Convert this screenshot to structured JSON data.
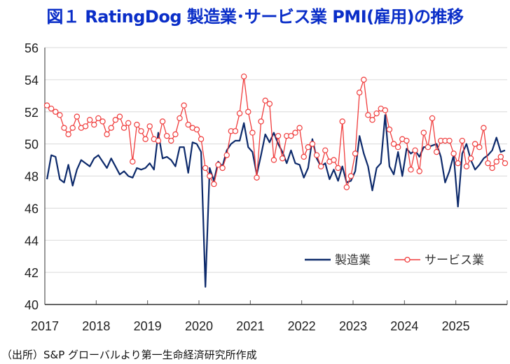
{
  "title": "図１ RatingDog 製造業･サービス業 PMI(雇用)の推移",
  "source": "（出所）S&P グローバルより第一生命経済研究所作成",
  "chart_data": {
    "type": "line",
    "title": "図１ RatingDog 製造業･サービス業 PMI(雇用)の推移",
    "xlabel": "",
    "ylabel": "",
    "ylim": [
      40,
      56
    ],
    "yticks": [
      40,
      42,
      44,
      46,
      48,
      50,
      52,
      54,
      56
    ],
    "xticks": [
      "2017",
      "2018",
      "2019",
      "2020",
      "2021",
      "2022",
      "2023",
      "2024",
      "2025"
    ],
    "x_start": "2017-01",
    "x_end": "2025-12",
    "grid": true,
    "legend_position": "bottom-right",
    "series": [
      {
        "name": "製造業",
        "color": "#0d2a6b",
        "marker": "none",
        "values": [
          47.8,
          49.3,
          49.2,
          47.8,
          47.6,
          48.7,
          47.4,
          48.4,
          49.0,
          48.8,
          48.6,
          49.1,
          49.3,
          48.9,
          48.5,
          49.1,
          48.6,
          48.1,
          48.3,
          48.0,
          47.9,
          48.5,
          48.4,
          48.5,
          48.8,
          48.4,
          50.7,
          49.1,
          49.2,
          49.0,
          48.6,
          49.8,
          49.8,
          48.2,
          50.1,
          50.0,
          49.5,
          41.1,
          48.5,
          47.7,
          48.9,
          48.6,
          49.6,
          50.0,
          50.2,
          50.2,
          51.3,
          49.8,
          49.5,
          48.1,
          49.3,
          50.6,
          50.1,
          50.7,
          50.0,
          49.5,
          48.8,
          49.6,
          48.8,
          48.7,
          47.9,
          48.5,
          50.3,
          49.1,
          48.6,
          48.8,
          47.8,
          48.4,
          47.7,
          48.6,
          47.6,
          47.7,
          48.3,
          50.5,
          49.4,
          48.6,
          47.1,
          48.5,
          48.8,
          51.8,
          48.6,
          48.1,
          49.5,
          48.0,
          49.7,
          49.4,
          49.6,
          49.2,
          49.8,
          49.8,
          49.9,
          50.0,
          49.2,
          47.6,
          48.3,
          49.3,
          46.1,
          49.4,
          50.0,
          49.0,
          48.4,
          48.7,
          49.1,
          49.3,
          49.6,
          50.4,
          49.5,
          49.6
        ]
      },
      {
        "name": "サービス業",
        "color": "#f03c3c",
        "marker": "circle",
        "values": [
          52.4,
          52.2,
          52.0,
          51.8,
          51.0,
          50.6,
          51.0,
          51.7,
          51.0,
          51.1,
          51.5,
          51.2,
          51.6,
          51.4,
          50.6,
          51.0,
          51.5,
          51.7,
          51.0,
          51.3,
          48.9,
          51.2,
          50.8,
          50.3,
          51.1,
          50.3,
          50.2,
          51.4,
          50.5,
          50.2,
          50.6,
          51.6,
          52.4,
          51.2,
          51.0,
          50.9,
          50.3,
          48.5,
          48.0,
          47.5,
          48.7,
          48.5,
          49.3,
          50.8,
          50.8,
          51.9,
          54.2,
          52.0,
          50.7,
          47.9,
          51.4,
          52.7,
          52.5,
          49.0,
          50.5,
          49.1,
          50.5,
          50.5,
          50.7,
          51.0,
          49.2,
          49.8,
          50.0,
          49.3,
          48.6,
          49.6,
          48.9,
          49.0,
          48.5,
          51.4,
          47.3,
          48.0,
          49.4,
          53.2,
          54.0,
          51.8,
          51.5,
          51.9,
          52.2,
          52.1,
          50.9,
          50.0,
          49.8,
          50.3,
          50.2,
          48.4,
          49.6,
          48.3,
          50.7,
          49.8,
          51.6,
          49.5,
          50.2,
          50.2,
          50.2,
          49.4,
          48.8,
          50.2,
          48.6,
          49.1,
          50.0,
          49.8,
          51.0,
          48.8,
          48.5,
          48.9,
          49.2,
          48.8
        ]
      }
    ]
  }
}
